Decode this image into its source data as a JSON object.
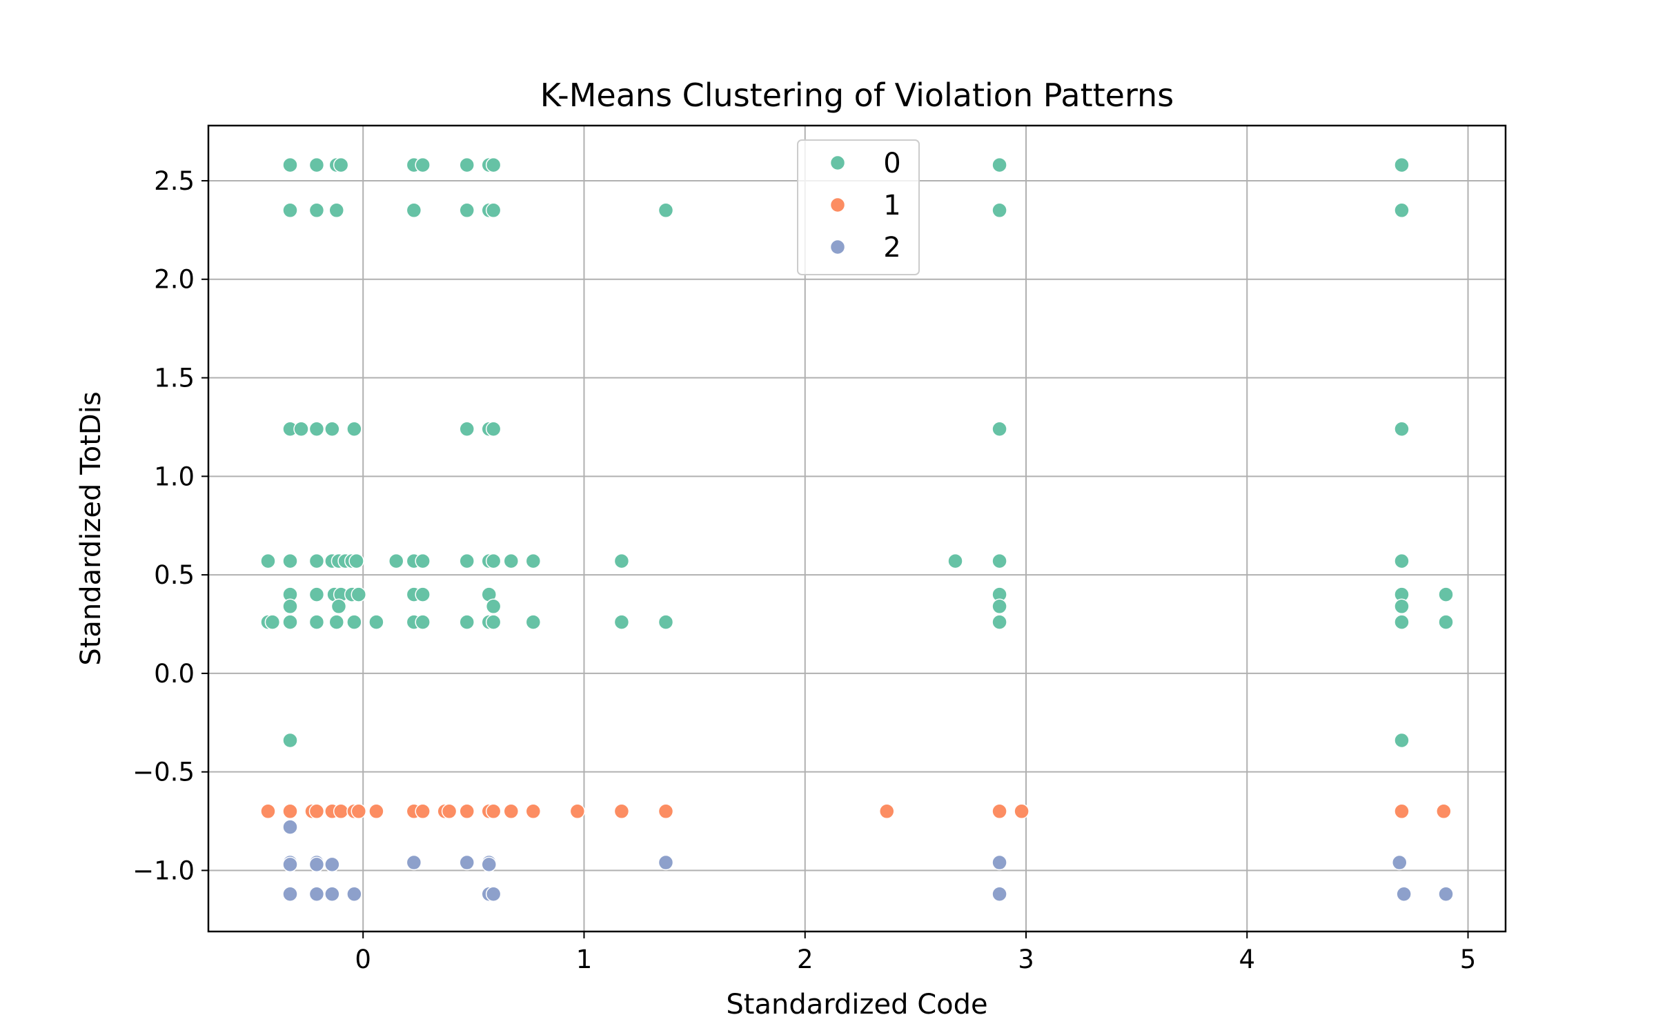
{
  "chart_data": {
    "type": "scatter",
    "title": "K-Means Clustering of Violation Patterns",
    "xlabel": "Standardized Code",
    "ylabel": "Standardized TotDis",
    "xlim": [
      -0.7,
      5.17
    ],
    "ylim": [
      -1.31,
      2.78
    ],
    "xticks": [
      0,
      1,
      2,
      3,
      4,
      5
    ],
    "yticks": [
      -1.0,
      -0.5,
      0.0,
      0.5,
      1.0,
      1.5,
      2.0,
      2.5
    ],
    "grid": true,
    "legend_position": "top-center",
    "series": [
      {
        "name": "0",
        "color": "#66c2a5",
        "points": [
          [
            -0.33,
            2.58
          ],
          [
            -0.21,
            2.58
          ],
          [
            -0.12,
            2.58
          ],
          [
            -0.1,
            2.58
          ],
          [
            0.23,
            2.58
          ],
          [
            0.27,
            2.58
          ],
          [
            0.47,
            2.58
          ],
          [
            0.57,
            2.58
          ],
          [
            0.59,
            2.58
          ],
          [
            2.88,
            2.58
          ],
          [
            4.7,
            2.58
          ],
          [
            -0.33,
            2.35
          ],
          [
            -0.21,
            2.35
          ],
          [
            -0.12,
            2.35
          ],
          [
            0.23,
            2.35
          ],
          [
            0.47,
            2.35
          ],
          [
            0.57,
            2.35
          ],
          [
            0.59,
            2.35
          ],
          [
            1.37,
            2.35
          ],
          [
            2.88,
            2.35
          ],
          [
            4.7,
            2.35
          ],
          [
            -0.33,
            1.24
          ],
          [
            -0.28,
            1.24
          ],
          [
            -0.21,
            1.24
          ],
          [
            -0.14,
            1.24
          ],
          [
            -0.04,
            1.24
          ],
          [
            0.47,
            1.24
          ],
          [
            0.57,
            1.24
          ],
          [
            0.59,
            1.24
          ],
          [
            2.88,
            1.24
          ],
          [
            4.7,
            1.24
          ],
          [
            -0.43,
            0.57
          ],
          [
            -0.33,
            0.57
          ],
          [
            -0.21,
            0.57
          ],
          [
            -0.14,
            0.57
          ],
          [
            -0.11,
            0.57
          ],
          [
            -0.08,
            0.57
          ],
          [
            -0.05,
            0.57
          ],
          [
            -0.03,
            0.57
          ],
          [
            0.15,
            0.57
          ],
          [
            0.23,
            0.57
          ],
          [
            0.27,
            0.57
          ],
          [
            0.47,
            0.57
          ],
          [
            0.57,
            0.57
          ],
          [
            0.59,
            0.57
          ],
          [
            0.67,
            0.57
          ],
          [
            0.77,
            0.57
          ],
          [
            1.17,
            0.57
          ],
          [
            2.68,
            0.57
          ],
          [
            2.88,
            0.57
          ],
          [
            4.7,
            0.57
          ],
          [
            -0.33,
            0.4
          ],
          [
            -0.21,
            0.4
          ],
          [
            -0.13,
            0.4
          ],
          [
            -0.1,
            0.4
          ],
          [
            -0.05,
            0.4
          ],
          [
            -0.02,
            0.4
          ],
          [
            0.23,
            0.4
          ],
          [
            0.27,
            0.4
          ],
          [
            0.57,
            0.4
          ],
          [
            2.88,
            0.4
          ],
          [
            4.7,
            0.4
          ],
          [
            4.9,
            0.4
          ],
          [
            -0.33,
            0.34
          ],
          [
            -0.11,
            0.34
          ],
          [
            0.59,
            0.34
          ],
          [
            2.88,
            0.34
          ],
          [
            4.7,
            0.34
          ],
          [
            -0.43,
            0.26
          ],
          [
            -0.41,
            0.26
          ],
          [
            -0.33,
            0.26
          ],
          [
            -0.21,
            0.26
          ],
          [
            -0.12,
            0.26
          ],
          [
            -0.04,
            0.26
          ],
          [
            0.06,
            0.26
          ],
          [
            0.23,
            0.26
          ],
          [
            0.27,
            0.26
          ],
          [
            0.47,
            0.26
          ],
          [
            0.57,
            0.26
          ],
          [
            0.59,
            0.26
          ],
          [
            0.77,
            0.26
          ],
          [
            1.17,
            0.26
          ],
          [
            1.37,
            0.26
          ],
          [
            2.88,
            0.26
          ],
          [
            4.7,
            0.26
          ],
          [
            4.9,
            0.26
          ],
          [
            -0.33,
            -0.34
          ],
          [
            4.7,
            -0.34
          ]
        ]
      },
      {
        "name": "1",
        "color": "#fc8d62",
        "points": [
          [
            -0.43,
            -0.7
          ],
          [
            -0.33,
            -0.7
          ],
          [
            -0.23,
            -0.7
          ],
          [
            -0.21,
            -0.7
          ],
          [
            -0.14,
            -0.7
          ],
          [
            -0.1,
            -0.7
          ],
          [
            -0.04,
            -0.7
          ],
          [
            -0.02,
            -0.7
          ],
          [
            0.06,
            -0.7
          ],
          [
            0.23,
            -0.7
          ],
          [
            0.27,
            -0.7
          ],
          [
            0.37,
            -0.7
          ],
          [
            0.39,
            -0.7
          ],
          [
            0.47,
            -0.7
          ],
          [
            0.57,
            -0.7
          ],
          [
            0.59,
            -0.7
          ],
          [
            0.67,
            -0.7
          ],
          [
            0.77,
            -0.7
          ],
          [
            0.97,
            -0.7
          ],
          [
            1.17,
            -0.7
          ],
          [
            1.37,
            -0.7
          ],
          [
            2.37,
            -0.7
          ],
          [
            2.88,
            -0.7
          ],
          [
            2.98,
            -0.7
          ],
          [
            4.7,
            -0.7
          ],
          [
            4.89,
            -0.7
          ]
        ]
      },
      {
        "name": "2",
        "color": "#8da0cb",
        "points": [
          [
            -0.33,
            -0.78
          ],
          [
            -0.33,
            -0.96
          ],
          [
            -0.21,
            -0.96
          ],
          [
            0.23,
            -0.96
          ],
          [
            0.47,
            -0.96
          ],
          [
            0.57,
            -0.96
          ],
          [
            1.37,
            -0.96
          ],
          [
            2.88,
            -0.96
          ],
          [
            4.69,
            -0.96
          ],
          [
            -0.33,
            -0.97
          ],
          [
            -0.21,
            -0.97
          ],
          [
            -0.14,
            -0.97
          ],
          [
            0.57,
            -0.97
          ],
          [
            -0.33,
            -1.12
          ],
          [
            -0.21,
            -1.12
          ],
          [
            -0.14,
            -1.12
          ],
          [
            -0.04,
            -1.12
          ],
          [
            0.57,
            -1.12
          ],
          [
            0.59,
            -1.12
          ],
          [
            2.88,
            -1.12
          ],
          [
            4.71,
            -1.12
          ],
          [
            4.9,
            -1.12
          ]
        ]
      }
    ]
  }
}
